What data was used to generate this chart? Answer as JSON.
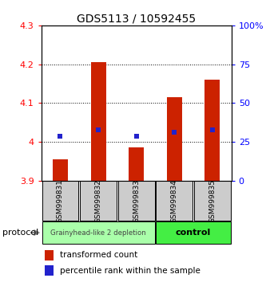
{
  "title": "GDS5113 / 10592455",
  "samples": [
    "GSM999831",
    "GSM999832",
    "GSM999833",
    "GSM999834",
    "GSM999835"
  ],
  "bar_bottoms": [
    3.9,
    3.9,
    3.9,
    3.9,
    3.9
  ],
  "bar_tops": [
    3.955,
    4.205,
    3.985,
    4.115,
    4.16
  ],
  "percentile_values": [
    4.015,
    4.03,
    4.015,
    4.025,
    4.03
  ],
  "ylim": [
    3.9,
    4.3
  ],
  "yticks_left": [
    3.9,
    4.0,
    4.1,
    4.2,
    4.3
  ],
  "ytick_labels_left": [
    "3.9",
    "4",
    "4.1",
    "4.2",
    "4.3"
  ],
  "yticks_right": [
    0,
    25,
    50,
    75,
    100
  ],
  "ytick_labels_right": [
    "0",
    "25",
    "50",
    "75",
    "100%"
  ],
  "bar_color": "#cc2200",
  "percentile_color": "#2222cc",
  "group1_samples": [
    0,
    1,
    2
  ],
  "group2_samples": [
    3,
    4
  ],
  "group1_label": "Grainyhead-like 2 depletion",
  "group2_label": "control",
  "group1_color": "#aaffaa",
  "group2_color": "#44ee44",
  "protocol_label": "protocol",
  "legend_bar_label": "transformed count",
  "legend_pct_label": "percentile rank within the sample",
  "background_color": "#ffffff",
  "sample_box_color": "#cccccc",
  "gridline_vals": [
    4.0,
    4.1,
    4.2
  ]
}
